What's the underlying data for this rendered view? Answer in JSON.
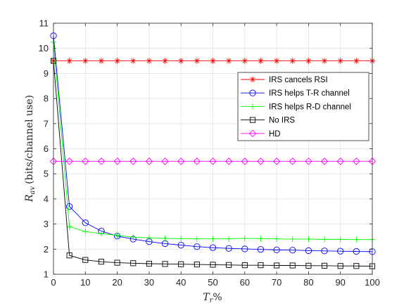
{
  "chart_data": {
    "type": "line",
    "xlabel_main": "T",
    "xlabel_sub": "r",
    "xlabel_suffix": "%",
    "ylabel_main": "R",
    "ylabel_sub": "av",
    "ylabel_suffix": "(bits/channel use)",
    "xlim": [
      0,
      100
    ],
    "ylim": [
      1,
      11
    ],
    "xticks": [
      0,
      10,
      20,
      30,
      40,
      50,
      60,
      70,
      80,
      90,
      100
    ],
    "yticks": [
      1,
      2,
      3,
      4,
      5,
      6,
      7,
      8,
      9,
      10,
      11
    ],
    "grid": true,
    "legend_position": "right",
    "x": [
      0,
      5,
      10,
      15,
      20,
      25,
      30,
      35,
      40,
      45,
      50,
      55,
      60,
      65,
      70,
      75,
      80,
      85,
      90,
      95,
      100
    ],
    "series": [
      {
        "name": "IRS cancels RSI",
        "color": "#ff0000",
        "marker": "asterisk",
        "marker_every": 1,
        "values": [
          9.5,
          9.5,
          9.5,
          9.5,
          9.5,
          9.5,
          9.5,
          9.5,
          9.5,
          9.5,
          9.5,
          9.5,
          9.5,
          9.5,
          9.5,
          9.5,
          9.5,
          9.5,
          9.5,
          9.5,
          9.5
        ]
      },
      {
        "name": "IRS helps T-R channel",
        "color": "#0000ff",
        "marker": "circle",
        "marker_every": 1,
        "values": [
          10.5,
          3.7,
          3.05,
          2.72,
          2.52,
          2.4,
          2.3,
          2.22,
          2.16,
          2.1,
          2.06,
          2.03,
          2.01,
          1.99,
          1.97,
          1.96,
          1.94,
          1.93,
          1.92,
          1.91,
          1.9
        ]
      },
      {
        "name": "IRS helps R-D channel",
        "color": "#00ff00",
        "marker": "plus",
        "marker_every": 1,
        "values": [
          10.25,
          2.9,
          2.7,
          2.62,
          2.55,
          2.48,
          2.45,
          2.43,
          2.42,
          2.41,
          2.41,
          2.41,
          2.43,
          2.42,
          2.41,
          2.4,
          2.4,
          2.39,
          2.39,
          2.38,
          2.38
        ]
      },
      {
        "name": "No IRS",
        "color": "#000000",
        "marker": "square",
        "marker_every": 1,
        "values": [
          9.5,
          1.75,
          1.57,
          1.5,
          1.46,
          1.44,
          1.42,
          1.41,
          1.4,
          1.39,
          1.38,
          1.37,
          1.36,
          1.36,
          1.35,
          1.35,
          1.34,
          1.34,
          1.33,
          1.33,
          1.32
        ]
      },
      {
        "name": "HD",
        "color": "#ff00ff",
        "marker": "diamond",
        "marker_every": 1,
        "values": [
          5.5,
          5.5,
          5.5,
          5.5,
          5.5,
          5.5,
          5.5,
          5.5,
          5.5,
          5.5,
          5.5,
          5.5,
          5.5,
          5.5,
          5.5,
          5.5,
          5.5,
          5.5,
          5.5,
          5.5,
          5.5
        ]
      }
    ]
  }
}
